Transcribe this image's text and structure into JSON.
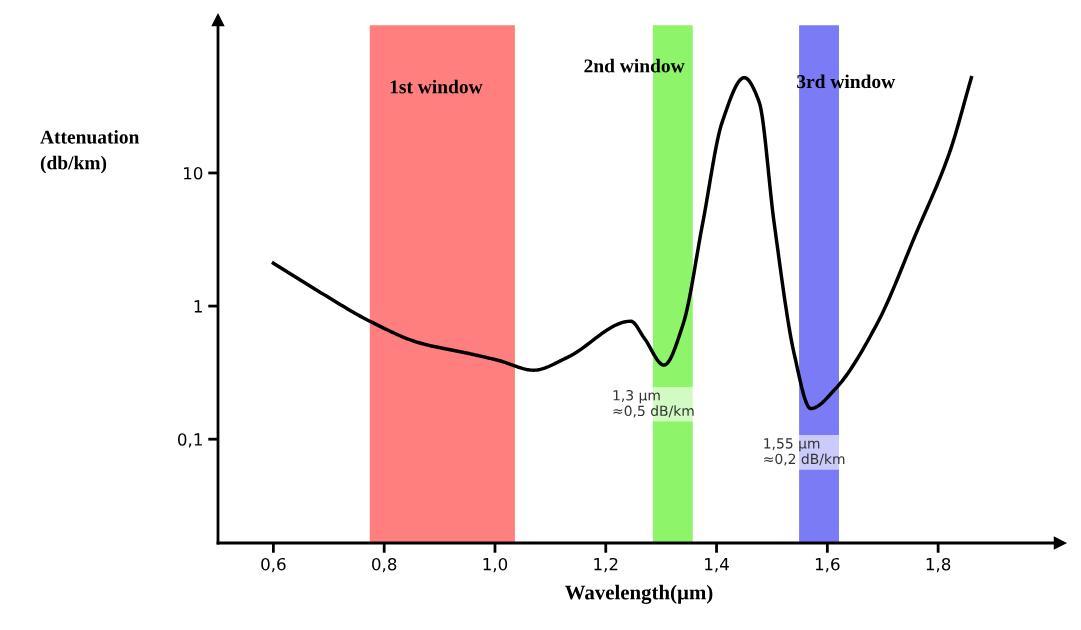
{
  "chart_data": {
    "type": "line",
    "xlabel": "Wavelength(µm)",
    "ylabel": "Attenuation\n(db/km)",
    "log": "y",
    "x": [
      0.6,
      0.687,
      0.774,
      0.863,
      0.953,
      1.007,
      1.07,
      1.13,
      1.245,
      1.27,
      1.305,
      1.34,
      1.375,
      1.41,
      1.45,
      1.477,
      1.504,
      1.54,
      1.57,
      1.615,
      1.69,
      1.76,
      1.82,
      1.86
    ],
    "series": [
      {
        "color": "#000000",
        "values": [
          2.1,
          1.25,
          0.77,
          0.53,
          0.44,
          0.39,
          0.33,
          0.41,
          0.77,
          0.57,
          0.36,
          0.74,
          4.2,
          24,
          52,
          34,
          4.2,
          0.44,
          0.17,
          0.24,
          0.74,
          3.5,
          14,
          52
        ]
      }
    ],
    "xlim": [
      0.5,
      2.02
    ],
    "ylim": [
      0.0166,
      141
    ],
    "xticks": [
      {
        "value": 0.6,
        "label": "0,6"
      },
      {
        "value": 0.8,
        "label": "0,8"
      },
      {
        "value": 1.0,
        "label": "1,0"
      },
      {
        "value": 1.2,
        "label": "1,2"
      },
      {
        "value": 1.4,
        "label": "1,4"
      },
      {
        "value": 1.6,
        "label": "1,6"
      },
      {
        "value": 1.8,
        "label": "1,8"
      }
    ],
    "yticks": [
      {
        "value": 0.1,
        "label": "0,1"
      },
      1,
      10
    ],
    "bands": [
      {
        "axis": "x",
        "from": 0.774,
        "to": 1.036,
        "label": "1st window",
        "color": "#ff7f7f"
      },
      {
        "axis": "x",
        "from": 1.285,
        "to": 1.357,
        "label": "2nd window",
        "color": "#8ef56a"
      },
      {
        "axis": "x",
        "from": 1.549,
        "to": 1.621,
        "label": "3rd window",
        "color": "#7b7bf5"
      }
    ],
    "annotations": [
      "1,3 µm\n≈0,5 dB/km",
      "1,55 µm\n≈0,2 dB/km"
    ],
    "grid": false,
    "marker": "none",
    "line_style": "solid",
    "legend": false
  }
}
